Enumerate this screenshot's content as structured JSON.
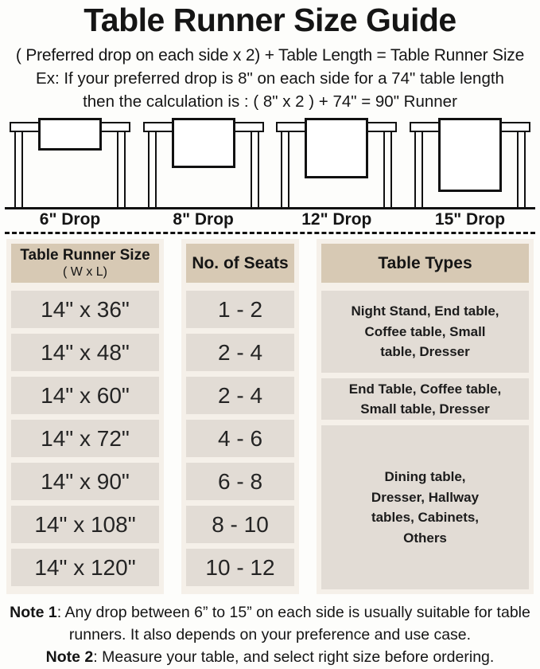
{
  "colors": {
    "ink": "#151515",
    "page_bg": "#fdfdfb",
    "panel_bg": "#f5f0e9",
    "header_cell_bg": "#d7c9b4",
    "cell_bg": "#e2dcd5"
  },
  "header": {
    "title": "Table Runner Size Guide",
    "formula": "( Preferred drop on each side x 2) + Table Length = Table Runner Size",
    "example_line1": "Ex: If your preferred drop is 8\" on each side for a 74\" table length",
    "example_line2": "then the calculation is : ( 8\" x 2 ) + 74\" = 90\" Runner"
  },
  "diagrams": [
    {
      "label": "6\" Drop"
    },
    {
      "label": "8\" Drop"
    },
    {
      "label": "12\" Drop"
    },
    {
      "label": "15\" Drop"
    }
  ],
  "size_table": {
    "columns": [
      {
        "header": "Table Runner Size",
        "subheader": "( W x L)"
      },
      {
        "header": "No. of Seats"
      },
      {
        "header": "Table Types"
      }
    ],
    "rows": [
      {
        "size": "14\" x 36\"",
        "seats": "1 - 2"
      },
      {
        "size": "14\" x 48\"",
        "seats": "2 - 4"
      },
      {
        "size": "14\" x 60\"",
        "seats": "2 - 4"
      },
      {
        "size": "14\" x 72\"",
        "seats": "4 - 6"
      },
      {
        "size": "14\" x 90\"",
        "seats": "6 - 8"
      },
      {
        "size": "14\" x 108\"",
        "seats": "8 - 10"
      },
      {
        "size": "14\" x 120\"",
        "seats": "10 - 12"
      }
    ],
    "table_types": [
      {
        "text": "Night Stand, End table,\nCoffee table, Small\ntable, Dresser"
      },
      {
        "text": "End Table, Coffee table,\nSmall table, Dresser"
      },
      {
        "text": "Dining table,\nDresser, Hallway\ntables, Cabinets,\nOthers"
      }
    ]
  },
  "notes": [
    {
      "label": "Note 1",
      "text": ": Any drop between 6” to 15” on each side is usually suitable for table runners. It also depends on your preference and use case."
    },
    {
      "label": "Note 2",
      "text": ": Measure your table, and select right size before ordering."
    }
  ]
}
